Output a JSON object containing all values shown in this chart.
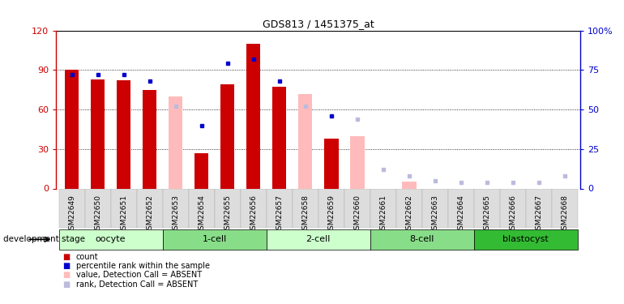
{
  "title": "GDS813 / 1451375_at",
  "samples": [
    "GSM22649",
    "GSM22650",
    "GSM22651",
    "GSM22652",
    "GSM22653",
    "GSM22654",
    "GSM22655",
    "GSM22656",
    "GSM22657",
    "GSM22658",
    "GSM22659",
    "GSM22660",
    "GSM22661",
    "GSM22662",
    "GSM22663",
    "GSM22664",
    "GSM22665",
    "GSM22666",
    "GSM22667",
    "GSM22668"
  ],
  "count_values": [
    90,
    83,
    82,
    75,
    null,
    27,
    79,
    110,
    77,
    null,
    38,
    null,
    null,
    null,
    null,
    null,
    null,
    null,
    null,
    null
  ],
  "rank_values": [
    72,
    72,
    72,
    68,
    null,
    40,
    79,
    82,
    68,
    null,
    46,
    null,
    null,
    null,
    null,
    null,
    null,
    null,
    null,
    null
  ],
  "absent_value": [
    null,
    null,
    null,
    null,
    70,
    null,
    null,
    null,
    null,
    72,
    null,
    40,
    null,
    5,
    null,
    null,
    null,
    null,
    null,
    null
  ],
  "absent_rank": [
    null,
    null,
    null,
    null,
    52,
    null,
    null,
    null,
    null,
    52,
    null,
    44,
    12,
    8,
    5,
    4,
    4,
    4,
    4,
    8
  ],
  "stages": [
    {
      "label": "oocyte",
      "indices": [
        0,
        1,
        2,
        3
      ],
      "color": "#ccffcc"
    },
    {
      "label": "1-cell",
      "indices": [
        4,
        5,
        6,
        7
      ],
      "color": "#88dd88"
    },
    {
      "label": "2-cell",
      "indices": [
        8,
        9,
        10,
        11
      ],
      "color": "#ccffcc"
    },
    {
      "label": "8-cell",
      "indices": [
        12,
        13,
        14,
        15
      ],
      "color": "#88dd88"
    },
    {
      "label": "blastocyst",
      "indices": [
        16,
        17,
        18,
        19
      ],
      "color": "#33bb33"
    }
  ],
  "bar_color_count": "#cc0000",
  "bar_color_rank": "#0000cc",
  "bar_color_absent_value": "#ffbbbb",
  "bar_color_absent_rank": "#bbbbdd",
  "ylim_left": [
    0,
    120
  ],
  "ylim_right": [
    0,
    100
  ],
  "yticks_left": [
    0,
    30,
    60,
    90,
    120
  ],
  "ytick_labels_left": [
    "0",
    "30",
    "60",
    "90",
    "120"
  ],
  "yticks_right": [
    0,
    25,
    50,
    75,
    100
  ],
  "ytick_labels_right": [
    "0",
    "25",
    "50",
    "75",
    "100%"
  ]
}
